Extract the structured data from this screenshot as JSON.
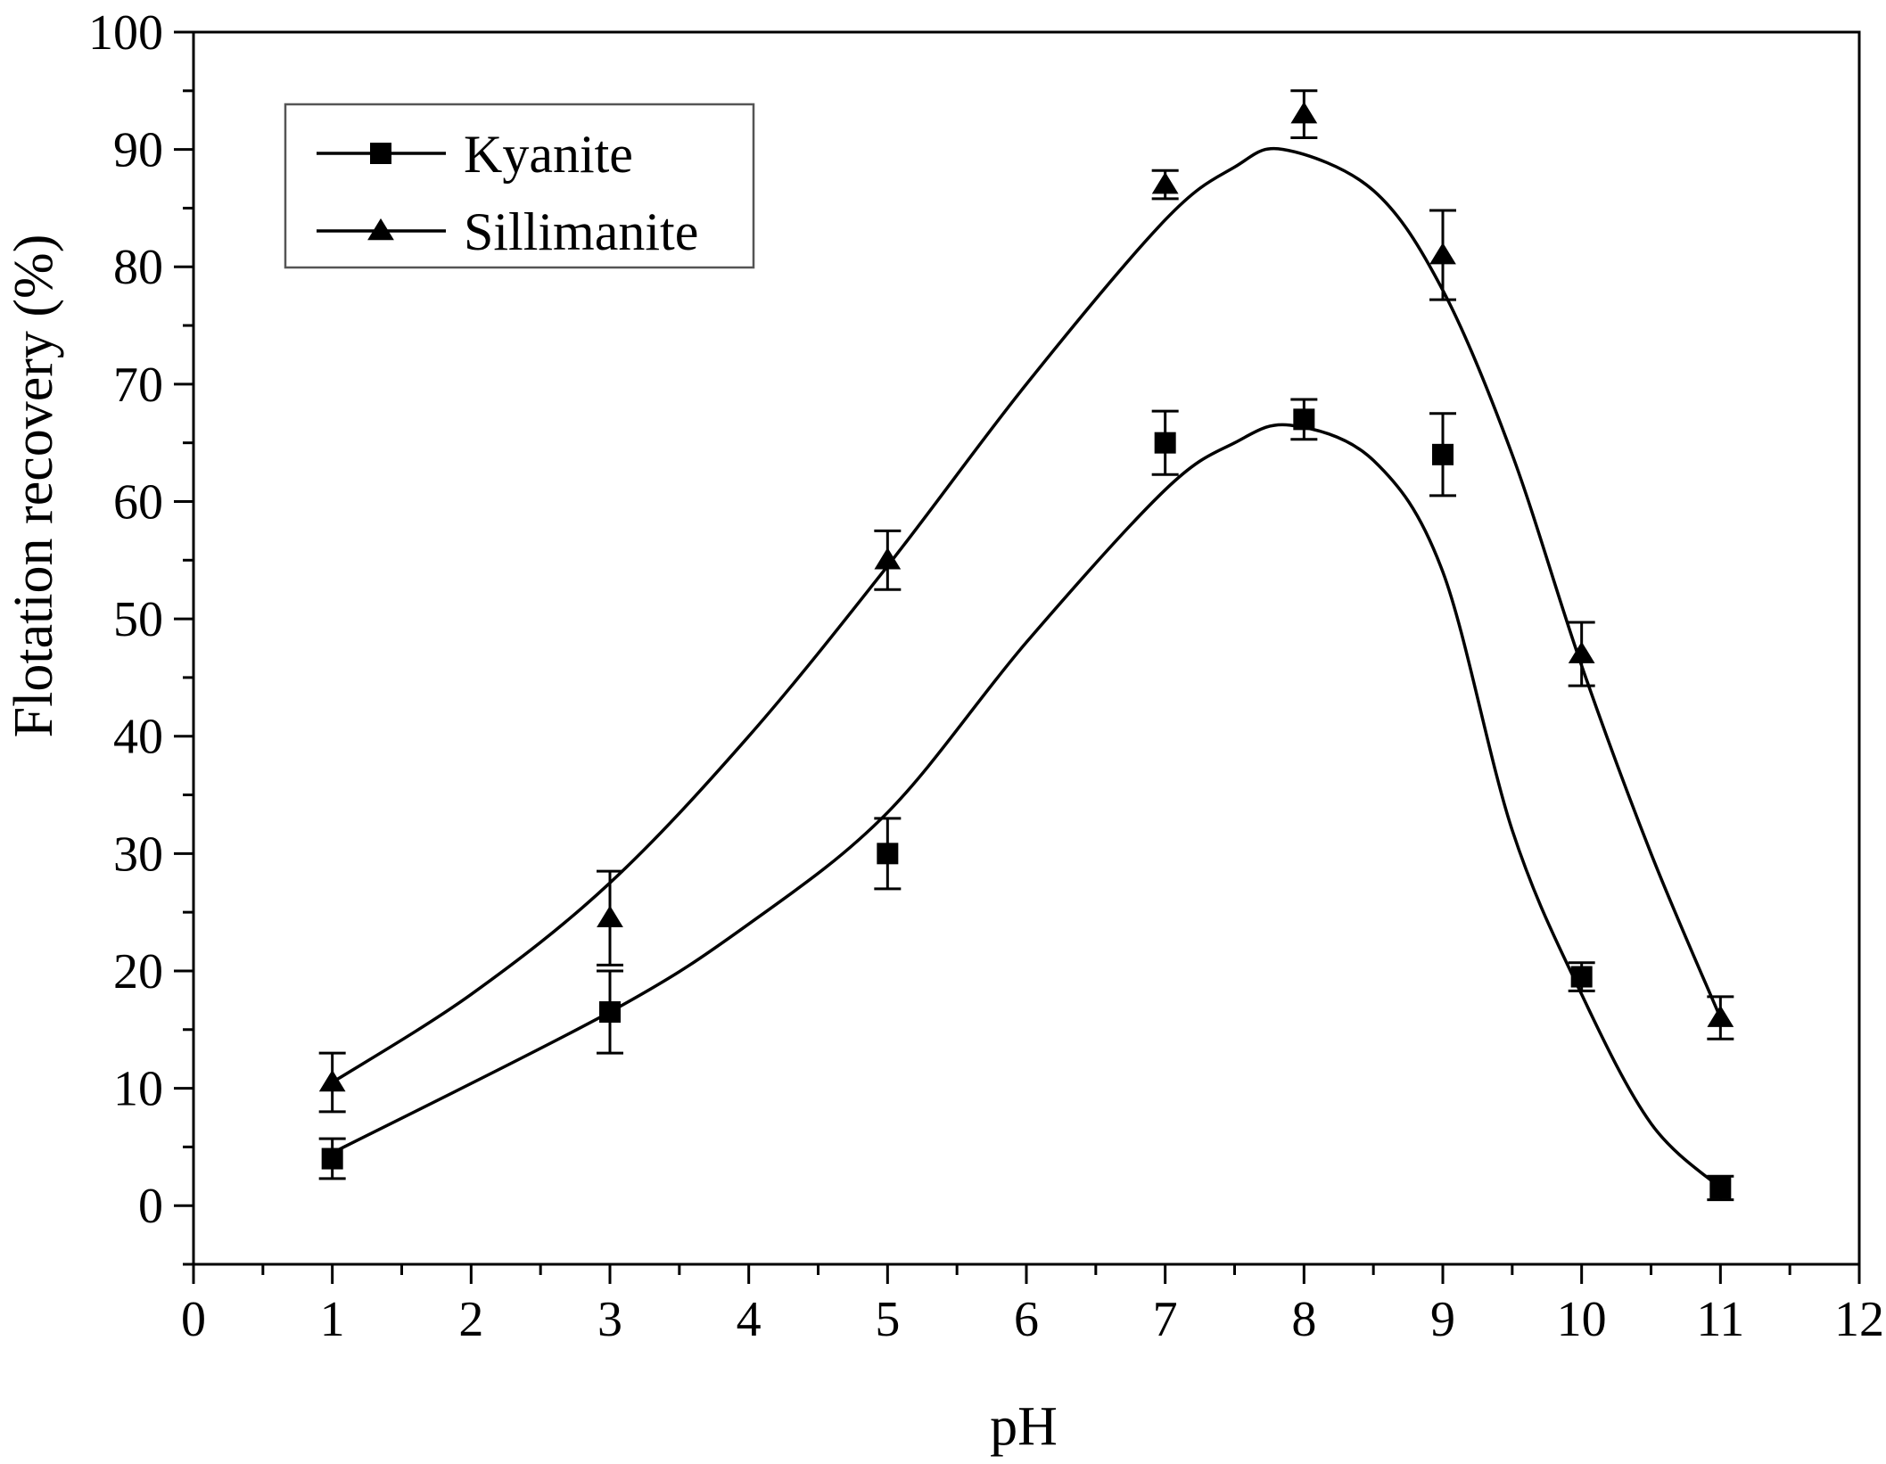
{
  "chart_data": {
    "type": "scatter",
    "title": "",
    "xlabel": "pH",
    "ylabel": "Flotation recovery (%)",
    "xlim": [
      0,
      12
    ],
    "ylim": [
      -5,
      100
    ],
    "xticks": [
      0,
      1,
      2,
      3,
      4,
      5,
      6,
      7,
      8,
      9,
      10,
      11,
      12
    ],
    "yticks": [
      0,
      10,
      20,
      30,
      40,
      50,
      60,
      70,
      80,
      90,
      100
    ],
    "grid": false,
    "legend_position": "top-left",
    "series": [
      {
        "name": "Kyanite",
        "marker": "square",
        "x": [
          1,
          3,
          5,
          7,
          8,
          9,
          10,
          11
        ],
        "y": [
          4,
          16.5,
          30,
          65,
          67,
          64,
          19.5,
          1.5
        ],
        "error": [
          1.7,
          3.5,
          3,
          2.7,
          1.7,
          3.5,
          1.2,
          1
        ],
        "fit": [
          [
            1,
            4.5
          ],
          [
            3,
            16.5
          ],
          [
            4,
            24
          ],
          [
            5,
            33.5
          ],
          [
            6,
            48
          ],
          [
            7,
            61
          ],
          [
            7.5,
            65
          ],
          [
            7.9,
            66.5
          ],
          [
            8.5,
            63.5
          ],
          [
            9,
            54
          ],
          [
            9.5,
            32
          ],
          [
            10,
            18
          ],
          [
            10.5,
            7
          ],
          [
            11,
            1.5
          ]
        ]
      },
      {
        "name": "Sillimanite",
        "marker": "triangle",
        "x": [
          1,
          3,
          5,
          7,
          8,
          9,
          10,
          11
        ],
        "y": [
          10.5,
          24.5,
          55,
          87,
          93,
          81,
          47,
          16
        ],
        "error": [
          2.5,
          4,
          2.5,
          1.2,
          2,
          3.8,
          2.7,
          1.8
        ],
        "fit": [
          [
            1,
            10.5
          ],
          [
            2,
            18
          ],
          [
            3,
            27.5
          ],
          [
            4,
            40
          ],
          [
            5,
            54.5
          ],
          [
            6,
            70
          ],
          [
            7,
            84
          ],
          [
            7.5,
            88.5
          ],
          [
            7.85,
            90
          ],
          [
            8.5,
            86.5
          ],
          [
            9,
            78
          ],
          [
            9.5,
            64
          ],
          [
            10,
            46
          ],
          [
            10.5,
            30
          ],
          [
            11,
            16
          ]
        ]
      }
    ]
  }
}
